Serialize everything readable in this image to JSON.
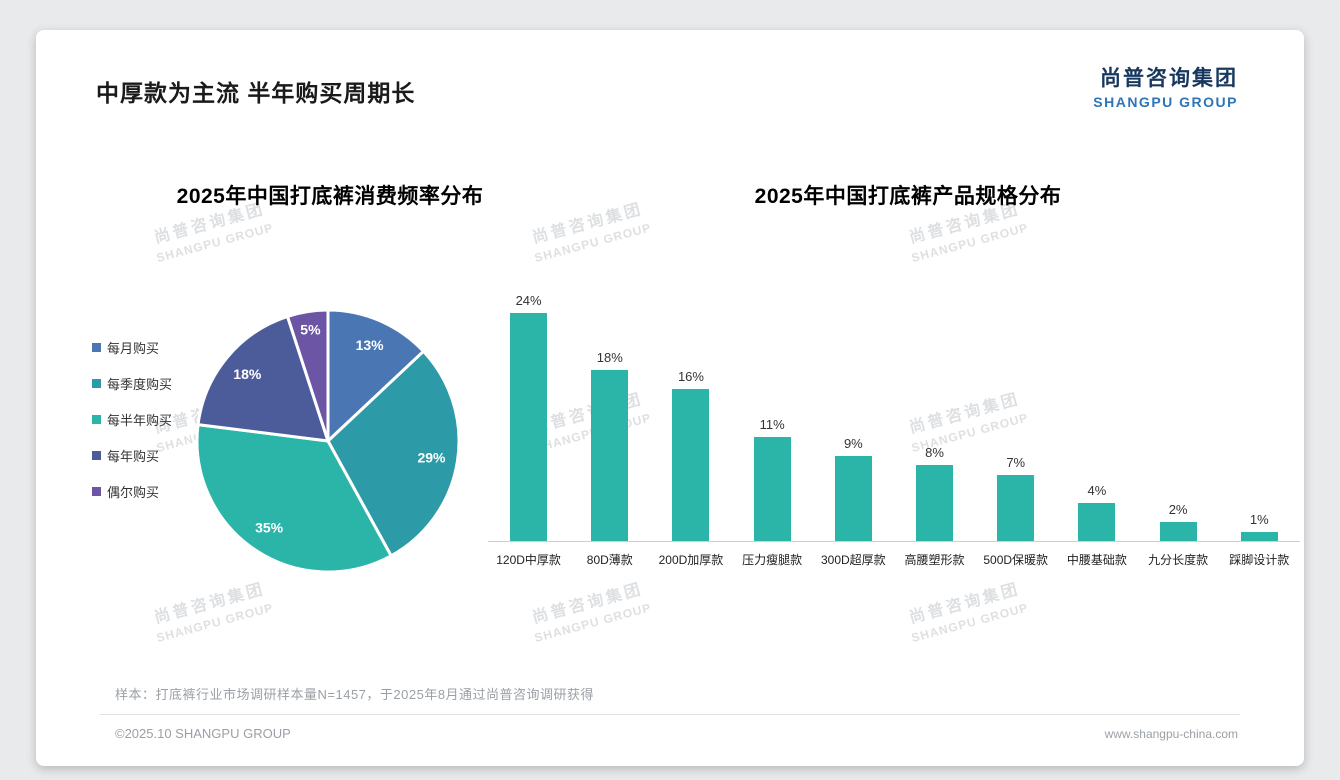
{
  "page": {
    "title": "中厚款为主流 半年购买周期长",
    "logo": {
      "cn": "尚普咨询集团",
      "en": "SHANGPU GROUP"
    },
    "footnote": "样本：打底裤行业市场调研样本量N=1457，于2025年8月通过尚普咨询调研获得",
    "footer_left": "©2025.10 SHANGPU GROUP",
    "footer_right": "www.shangpu-china.com",
    "watermark": {
      "cn": "尚普咨询集团",
      "en": "SHANGPU GROUP"
    }
  },
  "colors": {
    "accent_teal": "#2bb5a9",
    "logo_navy": "#17375e",
    "logo_blue": "#2e75b6",
    "text_gray": "#9aa0a6"
  },
  "chart_data": [
    {
      "type": "pie",
      "title": "2025年中国打底裤消费频率分布",
      "legend_position": "left",
      "labels": [
        "每月购买",
        "每季度购买",
        "每半年购买",
        "每年购买",
        "偶尔购买"
      ],
      "values": [
        13,
        29,
        35,
        18,
        5
      ],
      "value_labels": [
        "13%",
        "29%",
        "35%",
        "18%",
        "5%"
      ],
      "colors": [
        "#4a77b4",
        "#2d9aa8",
        "#2bb5a9",
        "#4c5c9b",
        "#6b55a4"
      ]
    },
    {
      "type": "bar",
      "title": "2025年中国打底裤产品规格分布",
      "categories": [
        "120D中厚款",
        "80D薄款",
        "200D加厚款",
        "压力瘦腿款",
        "300D超厚款",
        "高腰塑形款",
        "500D保暖款",
        "中腰基础款",
        "九分长度款",
        "踩脚设计款"
      ],
      "values": [
        24,
        18,
        16,
        11,
        9,
        8,
        7,
        4,
        2,
        1
      ],
      "value_labels": [
        "24%",
        "18%",
        "16%",
        "11%",
        "9%",
        "8%",
        "7%",
        "4%",
        "2%",
        "1%"
      ],
      "bar_color": "#2bb5a9",
      "xlabel": "",
      "ylabel": "",
      "ylim": [
        0,
        26
      ],
      "grid": false,
      "legend_position": "none"
    }
  ]
}
